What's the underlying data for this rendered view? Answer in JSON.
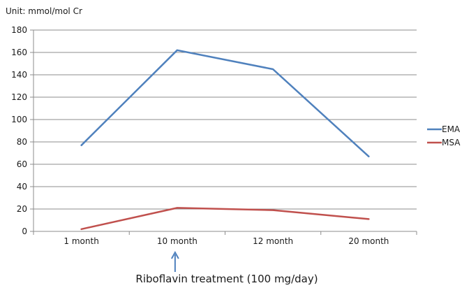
{
  "chart_data": {
    "type": "line",
    "unit_label": "Unit: mmol/mol Cr",
    "categories": [
      "1 month",
      "10 month",
      "12 month",
      "20 month"
    ],
    "series": [
      {
        "name": "EMA",
        "color": "#4f81bd",
        "values": [
          77,
          162,
          145,
          67
        ]
      },
      {
        "name": "MSA",
        "color": "#c0504d",
        "values": [
          2,
          21,
          19,
          11
        ]
      }
    ],
    "ylim": [
      0,
      180
    ],
    "y_ticks": [
      0,
      20,
      40,
      60,
      80,
      100,
      120,
      140,
      160,
      180
    ],
    "grid": true,
    "legend_position": "right",
    "annotation": {
      "text": "Riboflavin treatment (100 mg/day)",
      "category": "10 month",
      "arrow_color": "#4f81bd"
    }
  }
}
